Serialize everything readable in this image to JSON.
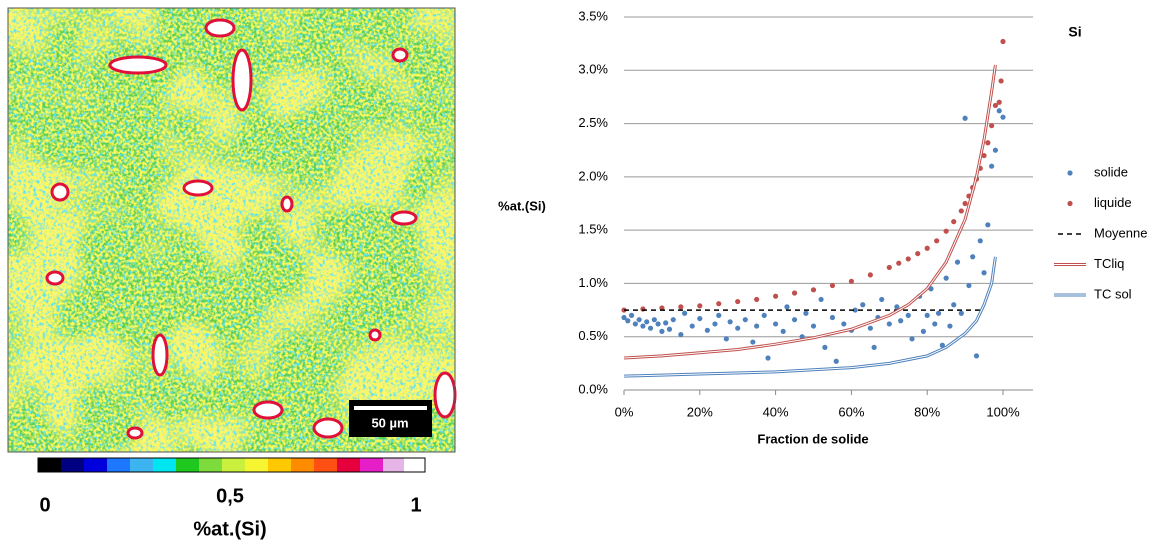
{
  "map": {
    "scale_bar": "50 µm",
    "colorbar_labels": [
      "0",
      "0,5",
      "1"
    ],
    "colorbar_title": "%at.(Si)"
  },
  "chart_data": {
    "type": "scatter",
    "title": "Si",
    "y_label": "%at.(Si)",
    "x_label": "Fraction de solide",
    "xlim": [
      0,
      100
    ],
    "ylim": [
      0,
      3.5
    ],
    "xticks": [
      {
        "value": 0,
        "label": "0%"
      },
      {
        "value": 20,
        "label": "20%"
      },
      {
        "value": 40,
        "label": "40%"
      },
      {
        "value": 60,
        "label": "60%"
      },
      {
        "value": 80,
        "label": "80%"
      },
      {
        "value": 100,
        "label": "100%"
      }
    ],
    "yticks": [
      {
        "value": 0,
        "label": "0.0%"
      },
      {
        "value": 0.5,
        "label": "0.5%"
      },
      {
        "value": 1,
        "label": "1.0%"
      },
      {
        "value": 1.5,
        "label": "1.5%"
      },
      {
        "value": 2,
        "label": "2.0%"
      },
      {
        "value": 2.5,
        "label": "2.5%"
      },
      {
        "value": 3,
        "label": "3.0%"
      },
      {
        "value": 3.5,
        "label": "3.5%"
      }
    ],
    "grid": true,
    "legend": "right",
    "series": [
      {
        "name": "solide",
        "color": "#4f81bd",
        "mode": "markers",
        "x": [
          0,
          1,
          2,
          3,
          4,
          5,
          6,
          7,
          8,
          9,
          10,
          11,
          12,
          13,
          15,
          16,
          18,
          20,
          22,
          24,
          25,
          27,
          28,
          30,
          32,
          34,
          35,
          37,
          38,
          40,
          42,
          43,
          45,
          47,
          48,
          50,
          52,
          53,
          55,
          56,
          58,
          60,
          61,
          63,
          65,
          66,
          67,
          68,
          70,
          72,
          73,
          75,
          76,
          78,
          79,
          80,
          81,
          82,
          83,
          84,
          85,
          86,
          87,
          88,
          89,
          90,
          91,
          92,
          93,
          94,
          95,
          96,
          97,
          98,
          99,
          100
        ],
        "values": [
          0.68,
          0.65,
          0.7,
          0.62,
          0.66,
          0.6,
          0.64,
          0.58,
          0.66,
          0.62,
          0.55,
          0.63,
          0.57,
          0.66,
          0.52,
          0.72,
          0.6,
          0.67,
          0.56,
          0.62,
          0.7,
          0.48,
          0.64,
          0.58,
          0.66,
          0.45,
          0.6,
          0.7,
          0.3,
          0.62,
          0.55,
          0.78,
          0.66,
          0.5,
          0.72,
          0.6,
          0.85,
          0.4,
          0.68,
          0.27,
          0.62,
          0.56,
          0.75,
          0.8,
          0.58,
          0.4,
          0.68,
          0.85,
          0.62,
          0.78,
          0.65,
          0.7,
          0.48,
          0.88,
          0.55,
          0.7,
          0.95,
          0.62,
          0.72,
          0.42,
          1.05,
          0.6,
          0.8,
          1.2,
          0.72,
          2.55,
          0.98,
          1.25,
          0.32,
          1.4,
          1.1,
          1.55,
          2.1,
          2.25,
          2.62,
          2.56
        ]
      },
      {
        "name": "liquide",
        "color": "#c0504d",
        "mode": "markers",
        "x": [
          0,
          5,
          10,
          15,
          20,
          25,
          30,
          35,
          40,
          45,
          50,
          55,
          60,
          65,
          70,
          72.5,
          75,
          77.5,
          80,
          82.5,
          85,
          87,
          89,
          90,
          91,
          92,
          93,
          94,
          95,
          96,
          97,
          98,
          99,
          99.5,
          100
        ],
        "values": [
          0.75,
          0.76,
          0.77,
          0.78,
          0.79,
          0.81,
          0.83,
          0.85,
          0.88,
          0.91,
          0.94,
          0.98,
          1.02,
          1.08,
          1.15,
          1.19,
          1.23,
          1.28,
          1.33,
          1.4,
          1.49,
          1.58,
          1.68,
          1.75,
          1.82,
          1.9,
          1.98,
          2.08,
          2.2,
          2.32,
          2.48,
          2.67,
          2.7,
          2.9,
          3.27
        ]
      },
      {
        "name": "Moyenne",
        "color": "#000000",
        "mode": "dashed",
        "x": [
          0,
          95
        ],
        "values": [
          0.75,
          0.75
        ]
      },
      {
        "name": "TCliq",
        "color": "#c0504d",
        "mode": "line",
        "x": [
          0,
          10,
          20,
          30,
          40,
          50,
          60,
          70,
          75,
          80,
          85,
          90,
          93,
          95,
          97,
          98
        ],
        "values": [
          0.3,
          0.32,
          0.35,
          0.38,
          0.43,
          0.49,
          0.57,
          0.7,
          0.8,
          0.95,
          1.2,
          1.6,
          2.0,
          2.35,
          2.8,
          3.05
        ]
      },
      {
        "name": "TC sol",
        "color": "#4f81bd",
        "mode": "line",
        "x": [
          0,
          20,
          40,
          60,
          70,
          80,
          85,
          90,
          93,
          95,
          97,
          98
        ],
        "values": [
          0.13,
          0.15,
          0.17,
          0.21,
          0.25,
          0.32,
          0.4,
          0.53,
          0.65,
          0.8,
          1.0,
          1.25
        ]
      }
    ]
  }
}
